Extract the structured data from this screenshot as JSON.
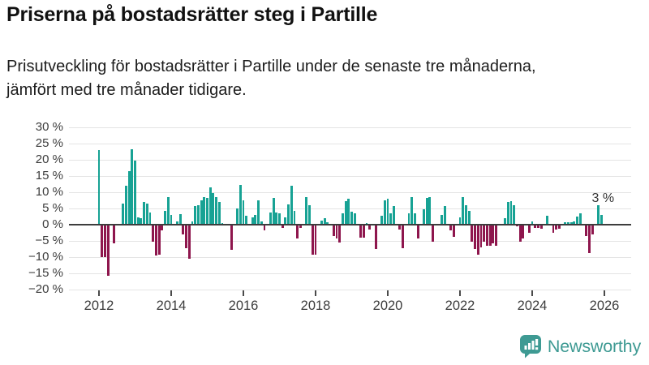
{
  "header": {
    "title": "Priserna på bostadsrätter steg i Partille",
    "subtitle": "Prisutveckling för bostadsrätter i Partille under de senaste tre månaderna, jämfört med tre månader tidigare."
  },
  "branding": {
    "name": "Newsworthy",
    "icon": "bar-chart-speech-bubble-icon",
    "color": "#3e9a93"
  },
  "colors": {
    "positive_bar": "#17a294",
    "negative_bar": "#8e164d",
    "gridline": "#e4e4e4",
    "zero_line": "#3d3d3d",
    "axis_text": "#3c3c3c"
  },
  "chart_data": {
    "type": "bar",
    "title": "Priserna på bostadsrätter steg i Partille",
    "unit": "%",
    "frequency": "monthly",
    "start": "2012-01",
    "end": "2025-12",
    "ylim": [
      -20,
      30
    ],
    "grid": true,
    "ytick_values": [
      30,
      25,
      20,
      15,
      10,
      5,
      0,
      -5,
      -10,
      -15,
      -20
    ],
    "ytick_labels": [
      "30 %",
      "25 %",
      "20 %",
      "15 %",
      "10 %",
      "5 %",
      "0 %",
      "−5 %",
      "−10 %",
      "−15 %",
      "−20 %"
    ],
    "xtick_labels": [
      "2012",
      "2014",
      "2016",
      "2018",
      "2020",
      "2022",
      "2024",
      "2026"
    ],
    "annotation_last_value": "3 %",
    "values": [
      23.0,
      -9.8,
      -9.8,
      -15.4,
      0,
      -5.4,
      0,
      0,
      6.5,
      11.9,
      16.5,
      23.2,
      19.8,
      2.2,
      1.9,
      6.9,
      6.6,
      3.8,
      -4.9,
      -9.3,
      -9.1,
      -1.4,
      4.2,
      8.4,
      3.0,
      0,
      0.9,
      3.2,
      -2.8,
      -7.0,
      -10.3,
      1.1,
      5.8,
      5.9,
      7.6,
      8.6,
      8.2,
      11.5,
      9.7,
      8.6,
      7.1,
      0.5,
      0,
      0,
      -7.4,
      0,
      5.1,
      12.2,
      7.4,
      2.8,
      0,
      2.2,
      3.0,
      7.6,
      1.1,
      -1.4,
      0,
      3.8,
      8.2,
      3.8,
      3.4,
      -0.8,
      2.2,
      6.3,
      11.9,
      4.3,
      -4.1,
      -0.8,
      0,
      8.6,
      5.9,
      -9.1,
      -9.1,
      0,
      1.3,
      1.9,
      0.8,
      0,
      -3.3,
      -3.9,
      -5.3,
      3.4,
      7.2,
      8.0,
      4.1,
      3.5,
      0,
      -3.8,
      -3.8,
      0.6,
      -1.3,
      0,
      -7.2,
      0,
      2.8,
      7.4,
      8.1,
      3.5,
      5.8,
      0,
      -1.2,
      -7.0,
      0,
      3.6,
      8.6,
      3.6,
      -4.1,
      0,
      4.7,
      8.3,
      8.4,
      -5.1,
      0,
      0,
      3.0,
      5.8,
      0,
      -1.6,
      -3.4,
      0,
      2.2,
      8.6,
      6.1,
      4.3,
      -4.9,
      -7.3,
      -9.1,
      -6.8,
      -5.1,
      -6.2,
      -6.2,
      -5.6,
      -6.2,
      0,
      0,
      1.9,
      6.9,
      7.2,
      6.1,
      -0.3,
      -4.9,
      -3.9,
      0,
      -2.3,
      0.9,
      -0.8,
      -0.8,
      -0.9,
      0,
      2.8,
      0,
      -2.3,
      -1.2,
      -0.9,
      0,
      0.8,
      0.8,
      0.8,
      0.9,
      2.6,
      3.6,
      0,
      -3.3,
      -8.4,
      -2.8,
      0,
      5.9,
      3.0
    ]
  }
}
